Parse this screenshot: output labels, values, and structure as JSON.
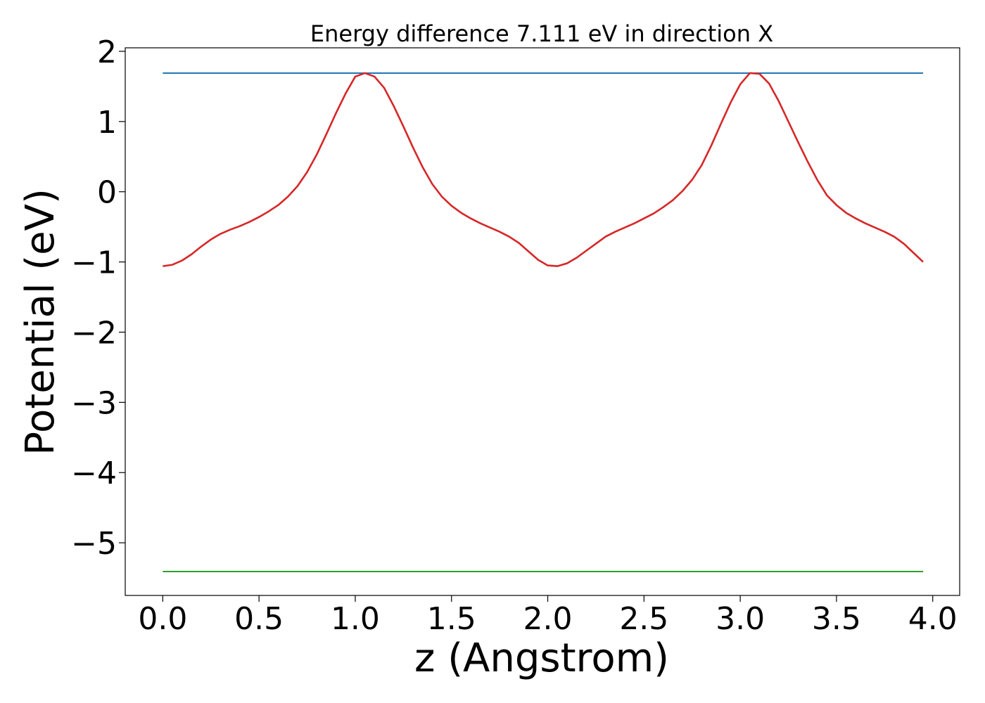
{
  "chart_data": {
    "type": "line",
    "title": "Energy difference 7.111 eV in direction X",
    "xlabel": "z (Angstrom)",
    "ylabel": "Potential (eV)",
    "xlim": [
      -0.195,
      4.14
    ],
    "ylim": [
      -5.75,
      2.05
    ],
    "grid": false,
    "x_ticks": [
      0.0,
      0.5,
      1.0,
      1.5,
      2.0,
      2.5,
      3.0,
      3.5,
      4.0
    ],
    "x_tick_labels": [
      "0.0",
      "0.5",
      "1.0",
      "1.5",
      "2.0",
      "2.5",
      "3.0",
      "3.5",
      "4.0"
    ],
    "y_ticks": [
      2,
      1,
      0,
      -1,
      -2,
      -3,
      -4,
      -5
    ],
    "y_tick_labels": [
      "2",
      "1",
      "0",
      "−1",
      "−2",
      "−3",
      "−4",
      "−5"
    ],
    "series": [
      {
        "name": "upper level",
        "color": "#1f77b4",
        "x": [
          0.0,
          3.95
        ],
        "y": [
          1.69,
          1.69
        ]
      },
      {
        "name": "lower level",
        "color": "#2ca02c",
        "x": [
          0.0,
          3.95
        ],
        "y": [
          -5.41,
          -5.41
        ]
      },
      {
        "name": "potential",
        "color": "#d62728",
        "x": [
          0.0,
          0.05,
          0.1,
          0.15,
          0.2,
          0.25,
          0.3,
          0.35,
          0.4,
          0.45,
          0.5,
          0.55,
          0.6,
          0.65,
          0.7,
          0.75,
          0.8,
          0.85,
          0.9,
          0.95,
          1.0,
          1.05,
          1.1,
          1.15,
          1.2,
          1.25,
          1.3,
          1.35,
          1.4,
          1.45,
          1.5,
          1.55,
          1.6,
          1.65,
          1.7,
          1.75,
          1.8,
          1.85,
          1.9,
          1.95,
          2.0,
          2.05,
          2.1,
          2.15,
          2.2,
          2.25,
          2.3,
          2.35,
          2.4,
          2.45,
          2.5,
          2.55,
          2.6,
          2.65,
          2.7,
          2.75,
          2.8,
          2.85,
          2.9,
          2.95,
          3.0,
          3.05,
          3.1,
          3.15,
          3.2,
          3.25,
          3.3,
          3.35,
          3.4,
          3.45,
          3.5,
          3.55,
          3.6,
          3.65,
          3.7,
          3.75,
          3.8,
          3.85,
          3.9,
          3.95
        ],
        "y": [
          -1.06,
          -1.04,
          -0.98,
          -0.89,
          -0.78,
          -0.68,
          -0.6,
          -0.54,
          -0.49,
          -0.43,
          -0.36,
          -0.28,
          -0.19,
          -0.07,
          0.08,
          0.28,
          0.53,
          0.82,
          1.12,
          1.4,
          1.64,
          1.69,
          1.64,
          1.48,
          1.22,
          0.93,
          0.63,
          0.35,
          0.11,
          -0.07,
          -0.2,
          -0.3,
          -0.38,
          -0.45,
          -0.51,
          -0.57,
          -0.64,
          -0.73,
          -0.85,
          -0.97,
          -1.05,
          -1.06,
          -1.02,
          -0.94,
          -0.84,
          -0.74,
          -0.64,
          -0.57,
          -0.51,
          -0.45,
          -0.38,
          -0.31,
          -0.22,
          -0.12,
          0.01,
          0.17,
          0.38,
          0.66,
          0.97,
          1.27,
          1.53,
          1.69,
          1.68,
          1.54,
          1.29,
          1.0,
          0.71,
          0.43,
          0.17,
          -0.05,
          -0.19,
          -0.3,
          -0.38,
          -0.45,
          -0.51,
          -0.57,
          -0.64,
          -0.74,
          -0.87,
          -1.0
        ]
      }
    ]
  }
}
